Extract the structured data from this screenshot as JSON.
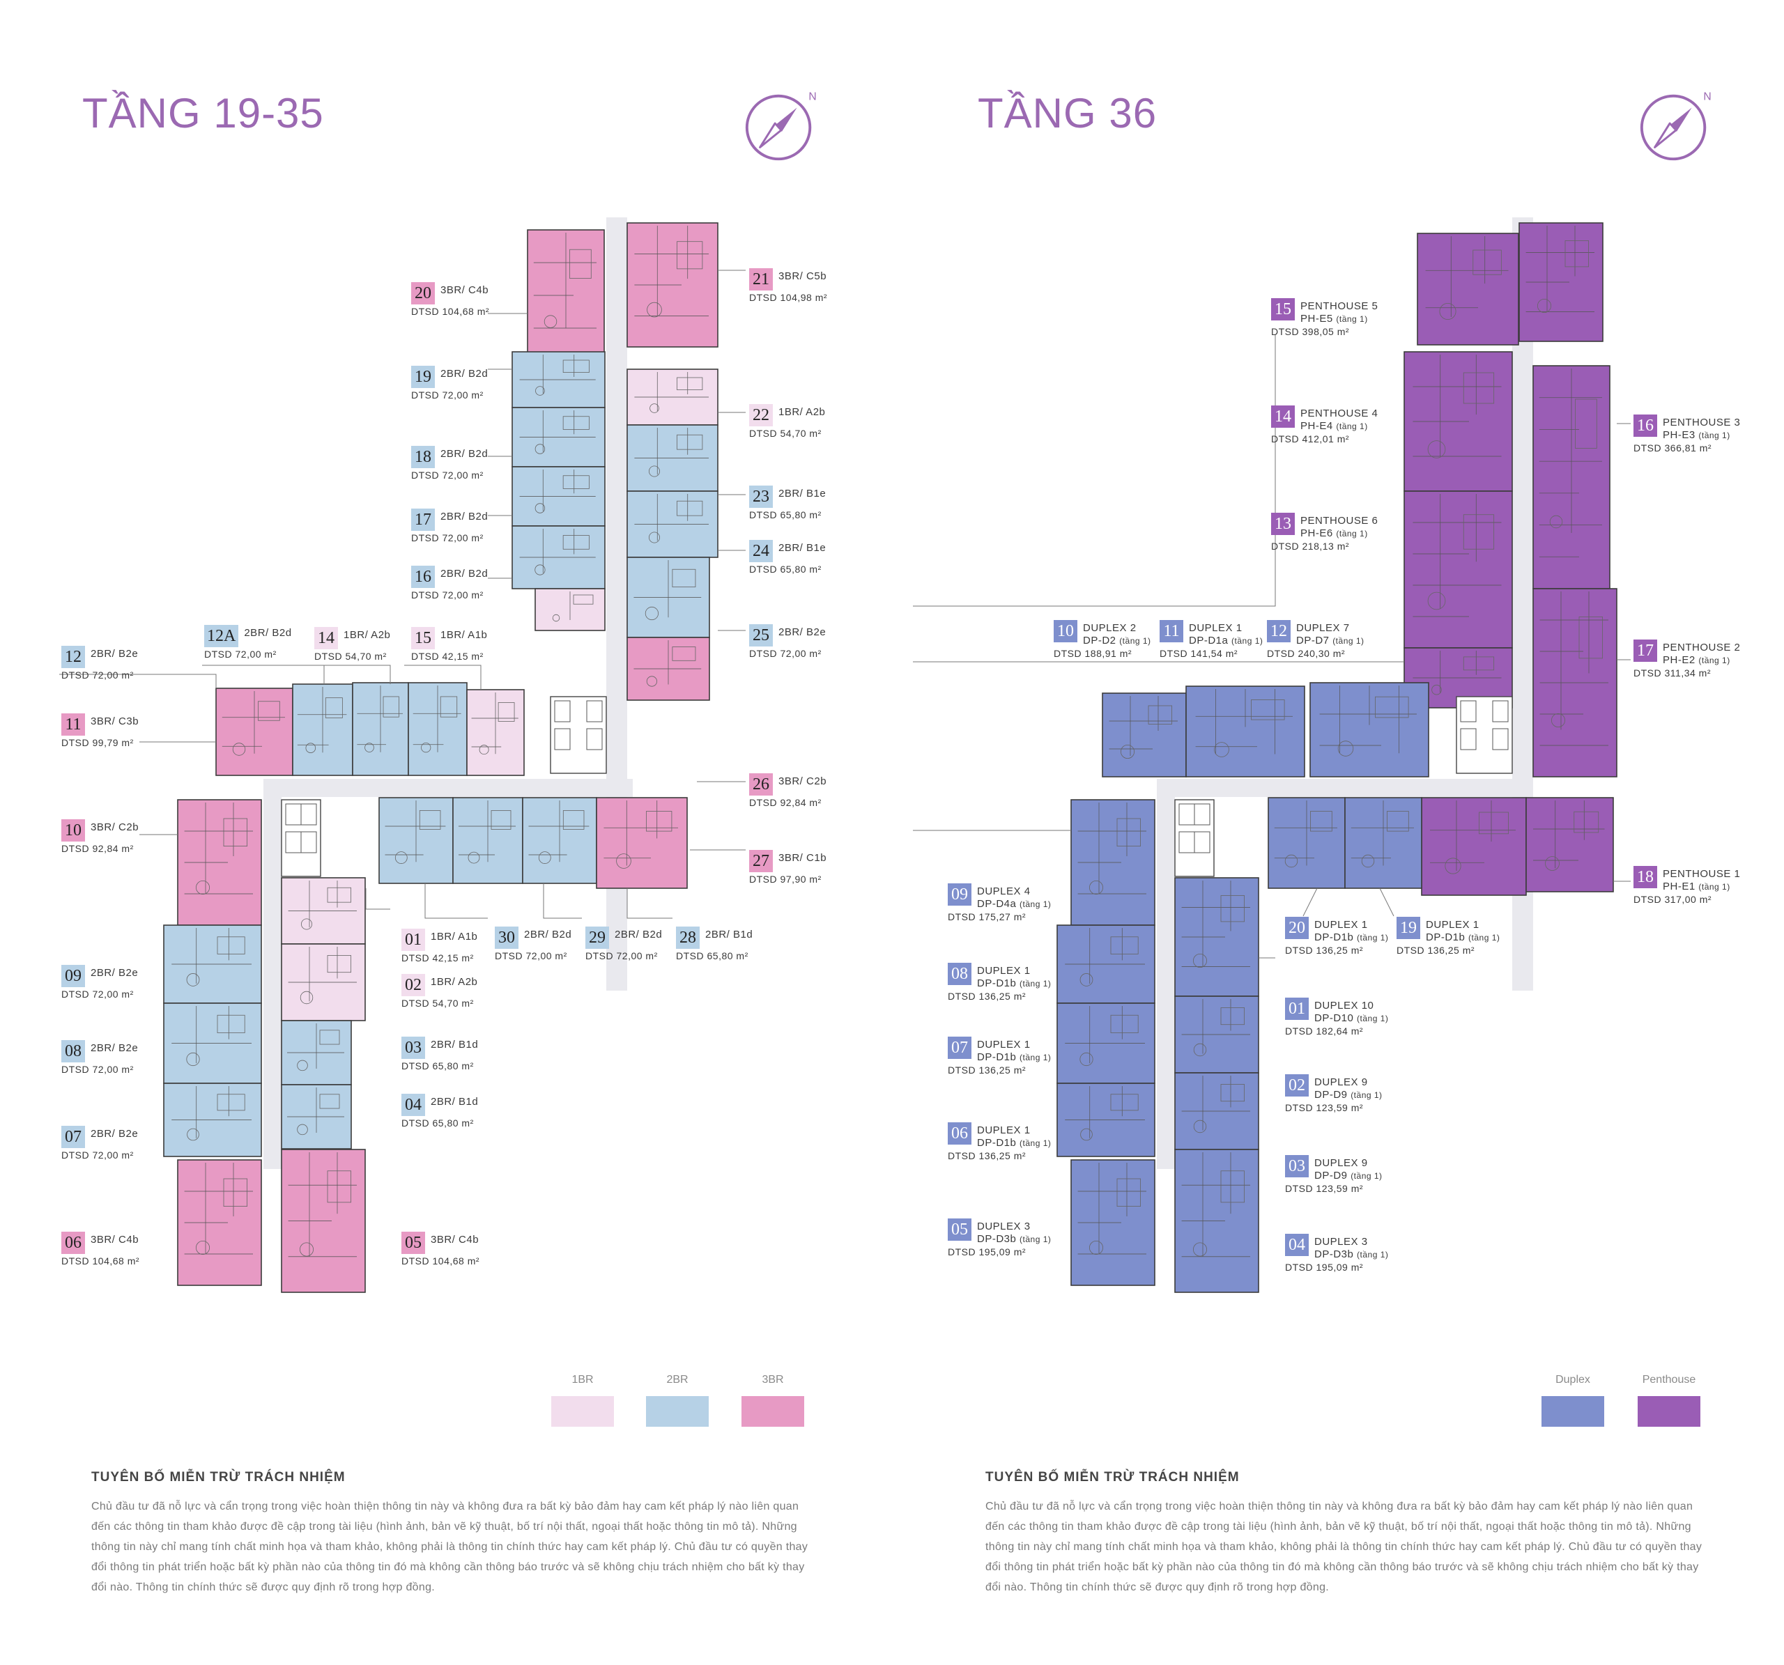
{
  "colors": {
    "title": "#9b69b2",
    "one_br": "#f2dded",
    "two_br": "#b6d1e6",
    "three_br": "#e79ac4",
    "duplex": "#7e8fcd",
    "penthouse": "#9a5db5",
    "corridor": "#e9e9ee"
  },
  "left": {
    "title": "TẦNG 19-35",
    "compass_letter": "N",
    "units": [
      {
        "no": "20",
        "type": "3BR/ C4b",
        "area": "DTSD 104,68 m²",
        "cat": "3br"
      },
      {
        "no": "21",
        "type": "3BR/ C5b",
        "area": "DTSD 104,98 m²",
        "cat": "3br"
      },
      {
        "no": "19",
        "type": "2BR/ B2d",
        "area": "DTSD 72,00 m²",
        "cat": "2br"
      },
      {
        "no": "22",
        "type": "1BR/ A2b",
        "area": "DTSD 54,70 m²",
        "cat": "1br"
      },
      {
        "no": "18",
        "type": "2BR/ B2d",
        "area": "DTSD 72,00 m²",
        "cat": "2br"
      },
      {
        "no": "23",
        "type": "2BR/ B1e",
        "area": "DTSD 65,80 m²",
        "cat": "2br"
      },
      {
        "no": "17",
        "type": "2BR/ B2d",
        "area": "DTSD 72,00 m²",
        "cat": "2br"
      },
      {
        "no": "24",
        "type": "2BR/ B1e",
        "area": "DTSD 65,80 m²",
        "cat": "2br"
      },
      {
        "no": "16",
        "type": "2BR/ B2d",
        "area": "DTSD 72,00 m²",
        "cat": "2br"
      },
      {
        "no": "25",
        "type": "2BR/ B2e",
        "area": "DTSD 72,00 m²",
        "cat": "2br"
      },
      {
        "no": "12",
        "type": "2BR/ B2e",
        "area": "DTSD 72,00 m²",
        "cat": "2br"
      },
      {
        "no": "12A",
        "type": "2BR/ B2d",
        "area": "DTSD 72,00 m²",
        "cat": "2br"
      },
      {
        "no": "14",
        "type": "1BR/ A2b",
        "area": "DTSD 54,70 m²",
        "cat": "1br"
      },
      {
        "no": "15",
        "type": "1BR/ A1b",
        "area": "DTSD 42,15 m²",
        "cat": "1br"
      },
      {
        "no": "11",
        "type": "3BR/ C3b",
        "area": "DTSD 99,79 m²",
        "cat": "3br"
      },
      {
        "no": "26",
        "type": "3BR/ C2b",
        "area": "DTSD 92,84 m²",
        "cat": "3br"
      },
      {
        "no": "10",
        "type": "3BR/ C2b",
        "area": "DTSD 92,84 m²",
        "cat": "3br"
      },
      {
        "no": "27",
        "type": "3BR/ C1b",
        "area": "DTSD 97,90 m²",
        "cat": "3br"
      },
      {
        "no": "01",
        "type": "1BR/ A1b",
        "area": "DTSD 42,15 m²",
        "cat": "1br"
      },
      {
        "no": "30",
        "type": "2BR/ B2d",
        "area": "DTSD 72,00 m²",
        "cat": "2br"
      },
      {
        "no": "29",
        "type": "2BR/ B2d",
        "area": "DTSD 72,00 m²",
        "cat": "2br"
      },
      {
        "no": "28",
        "type": "2BR/ B1d",
        "area": "DTSD 65,80 m²",
        "cat": "2br"
      },
      {
        "no": "09",
        "type": "2BR/ B2e",
        "area": "DTSD 72,00 m²",
        "cat": "2br"
      },
      {
        "no": "02",
        "type": "1BR/ A2b",
        "area": "DTSD 54,70 m²",
        "cat": "1br"
      },
      {
        "no": "08",
        "type": "2BR/ B2e",
        "area": "DTSD 72,00 m²",
        "cat": "2br"
      },
      {
        "no": "03",
        "type": "2BR/ B1d",
        "area": "DTSD 65,80 m²",
        "cat": "2br"
      },
      {
        "no": "04",
        "type": "2BR/ B1d",
        "area": "DTSD 65,80 m²",
        "cat": "2br"
      },
      {
        "no": "07",
        "type": "2BR/ B2e",
        "area": "DTSD 72,00 m²",
        "cat": "2br"
      },
      {
        "no": "06",
        "type": "3BR/ C4b",
        "area": "DTSD 104,68 m²",
        "cat": "3br"
      },
      {
        "no": "05",
        "type": "3BR/ C4b",
        "area": "DTSD 104,68 m²",
        "cat": "3br"
      }
    ],
    "legend": [
      {
        "label": "1BR",
        "color": "#f2dded"
      },
      {
        "label": "2BR",
        "color": "#b6d1e6"
      },
      {
        "label": "3BR",
        "color": "#e79ac4"
      }
    ],
    "disclaimer_title": "TUYÊN BỐ MIỄN TRỪ TRÁCH NHIỆM",
    "disclaimer_body": "Chủ đầu tư đã nỗ lực và cẩn trọng trong việc hoàn thiện thông tin này và không đưa ra bất kỳ bảo đảm hay cam kết pháp lý nào liên quan đến các thông tin tham khảo được đề cập trong tài liệu (hình ảnh, bản vẽ kỹ thuật, bố trí nội thất, ngoại thất hoặc thông tin mô tả). Những thông tin này chỉ mang tính chất minh họa và tham khảo, không phải là thông tin chính thức hay cam kết pháp lý. Chủ đầu tư có quyền thay đổi thông tin phát triển hoặc bất kỳ phần nào của thông tin đó mà không cần thông báo trước và sẽ không chịu trách nhiệm cho bất kỳ thay đổi nào. Thông tin chính thức sẽ được quy định rõ trong hợp đồng."
  },
  "right": {
    "title": "TẦNG 36",
    "compass_letter": "N",
    "units": [
      {
        "no": "15",
        "line1": "PENTHOUSE 5",
        "line2": "PH-E5",
        "note": "(tầng 1)",
        "area": "DTSD 398,05 m²",
        "cat": "ph"
      },
      {
        "no": "14",
        "line1": "PENTHOUSE 4",
        "line2": "PH-E4",
        "note": "(tầng 1)",
        "area": "DTSD 412,01 m²",
        "cat": "ph"
      },
      {
        "no": "16",
        "line1": "PENTHOUSE 3",
        "line2": "PH-E3",
        "note": "(tầng 1)",
        "area": "DTSD 366,81 m²",
        "cat": "ph"
      },
      {
        "no": "13",
        "line1": "PENTHOUSE 6",
        "line2": "PH-E6",
        "note": "(tầng 1)",
        "area": "DTSD 218,13 m²",
        "cat": "ph"
      },
      {
        "no": "10",
        "line1": "DUPLEX 2",
        "line2": "DP-D2",
        "note": "(tầng 1)",
        "area": "DTSD 188,91 m²",
        "cat": "dp"
      },
      {
        "no": "11",
        "line1": "DUPLEX 1",
        "line2": "DP-D1a",
        "note": "(tầng 1)",
        "area": "DTSD 141,54 m²",
        "cat": "dp"
      },
      {
        "no": "12",
        "line1": "DUPLEX 7",
        "line2": "DP-D7",
        "note": "(tầng 1)",
        "area": "DTSD 240,30 m²",
        "cat": "dp"
      },
      {
        "no": "17",
        "line1": "PENTHOUSE 2",
        "line2": "PH-E2",
        "note": "(tầng 1)",
        "area": "DTSD 311,34 m²",
        "cat": "ph"
      },
      {
        "no": "18",
        "line1": "PENTHOUSE 1",
        "line2": "PH-E1",
        "note": "(tầng 1)",
        "area": "DTSD 317,00 m²",
        "cat": "ph"
      },
      {
        "no": "09",
        "line1": "DUPLEX 4",
        "line2": "DP-D4a",
        "note": "(tầng 1)",
        "area": "DTSD 175,27 m²",
        "cat": "dp"
      },
      {
        "no": "20",
        "line1": "DUPLEX 1",
        "line2": "DP-D1b",
        "note": "(tầng 1)",
        "area": "DTSD 136,25 m²",
        "cat": "dp"
      },
      {
        "no": "19",
        "line1": "DUPLEX 1",
        "line2": "DP-D1b",
        "note": "(tầng 1)",
        "area": "DTSD 136,25 m²",
        "cat": "dp"
      },
      {
        "no": "08",
        "line1": "DUPLEX 1",
        "line2": "DP-D1b",
        "note": "(tầng 1)",
        "area": "DTSD 136,25 m²",
        "cat": "dp"
      },
      {
        "no": "01",
        "line1": "DUPLEX 10",
        "line2": "DP-D10",
        "note": "(tầng 1)",
        "area": "DTSD 182,64 m²",
        "cat": "dp"
      },
      {
        "no": "07",
        "line1": "DUPLEX 1",
        "line2": "DP-D1b",
        "note": "(tầng 1)",
        "area": "DTSD 136,25 m²",
        "cat": "dp"
      },
      {
        "no": "02",
        "line1": "DUPLEX 9",
        "line2": "DP-D9",
        "note": "(tầng 1)",
        "area": "DTSD 123,59 m²",
        "cat": "dp"
      },
      {
        "no": "06",
        "line1": "DUPLEX 1",
        "line2": "DP-D1b",
        "note": "(tầng 1)",
        "area": "DTSD 136,25 m²",
        "cat": "dp"
      },
      {
        "no": "03",
        "line1": "DUPLEX 9",
        "line2": "DP-D9",
        "note": "(tầng 1)",
        "area": "DTSD 123,59 m²",
        "cat": "dp"
      },
      {
        "no": "05",
        "line1": "DUPLEX 3",
        "line2": "DP-D3b",
        "note": "(tầng 1)",
        "area": "DTSD 195,09 m²",
        "cat": "dp"
      },
      {
        "no": "04",
        "line1": "DUPLEX 3",
        "line2": "DP-D3b",
        "note": "(tầng 1)",
        "area": "DTSD 195,09 m²",
        "cat": "dp"
      }
    ],
    "legend": [
      {
        "label": "Duplex",
        "color": "#7e8fcd"
      },
      {
        "label": "Penthouse",
        "color": "#9a5db5"
      }
    ],
    "disclaimer_title": "TUYÊN BỐ MIỄN TRỪ TRÁCH NHIỆM",
    "disclaimer_body": "Chủ đầu tư đã nỗ lực và cẩn trọng trong việc hoàn thiện thông tin này và không đưa ra bất kỳ bảo đảm hay cam kết pháp lý nào liên quan đến các thông tin tham khảo được đề cập trong tài liệu (hình ảnh, bản vẽ kỹ thuật, bố trí nội thất, ngoại thất hoặc thông tin mô tả). Những thông tin này chỉ mang tính chất minh họa và tham khảo, không phải là thông tin chính thức hay cam kết pháp lý. Chủ đầu tư có quyền thay đổi thông tin phát triển hoặc bất kỳ phần nào của thông tin đó mà không cần thông báo trước và sẽ không chịu trách nhiệm cho bất kỳ thay đổi nào. Thông tin chính thức sẽ được quy định rõ trong hợp đồng."
  }
}
